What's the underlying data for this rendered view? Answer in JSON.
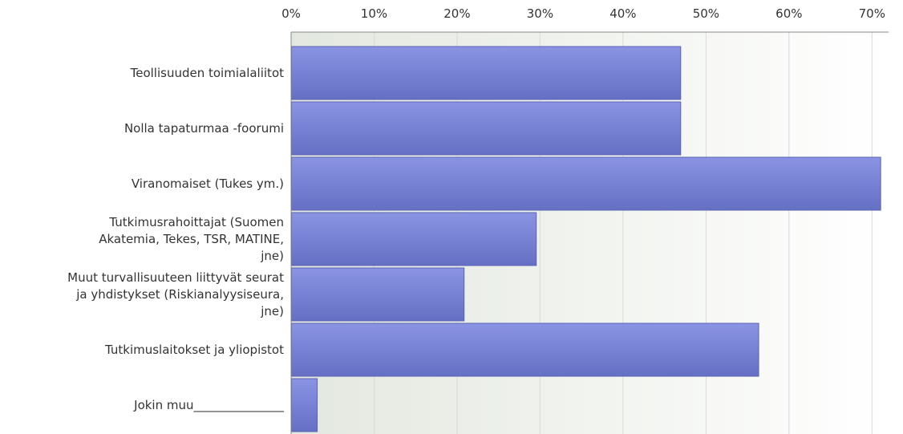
{
  "chart_data": {
    "type": "bar",
    "orientation": "horizontal",
    "title": "",
    "xlabel": "",
    "ylabel": "",
    "xlim": [
      0,
      72
    ],
    "tick_labels": [
      "0%",
      "10%",
      "20%",
      "30%",
      "40%",
      "50%",
      "60%",
      "70%"
    ],
    "grid": true,
    "categories": [
      "Teollisuuden toimialaliitot",
      "Nolla tapaturmaa -foorumi",
      "Viranomaiset (Tukes ym.)",
      "Tutkimusrahoittajat (Suomen Akatemia, Tekes, TSR, MATINE, jne)",
      "Muut turvallisuuteen liittyvät seurat ja yhdistykset (Riskianalyysiseura, jne)",
      "Tutkimuslaitokset ja yliopistot",
      "Jokin muu_______________"
    ],
    "category_lines": [
      [
        "Teollisuuden toimialaliitot"
      ],
      [
        "Nolla tapaturmaa -foorumi"
      ],
      [
        "Viranomaiset (Tukes ym.)"
      ],
      [
        "Tutkimusrahoittajat (Suomen",
        "Akatemia, Tekes, TSR, MATINE,",
        "jne)"
      ],
      [
        "Muut turvallisuuteen liittyvät seurat",
        "ja yhdistykset (Riskianalyysiseura,",
        "jne)"
      ],
      [
        "Tutkimuslaitokset ja yliopistot"
      ],
      [
        "Jokin muu_______________"
      ]
    ],
    "values": [
      46.9,
      46.9,
      71.0,
      29.5,
      20.8,
      56.3,
      3.1
    ],
    "colors": {
      "bar_top": "#8a94e3",
      "bar_bottom": "#6570c4",
      "bar_edge": "#5a63b5",
      "grid": "#d9dcd3",
      "plot_bg_left": "#e3e8df",
      "plot_bg_right": "#ffffff",
      "axis": "#888888"
    }
  }
}
